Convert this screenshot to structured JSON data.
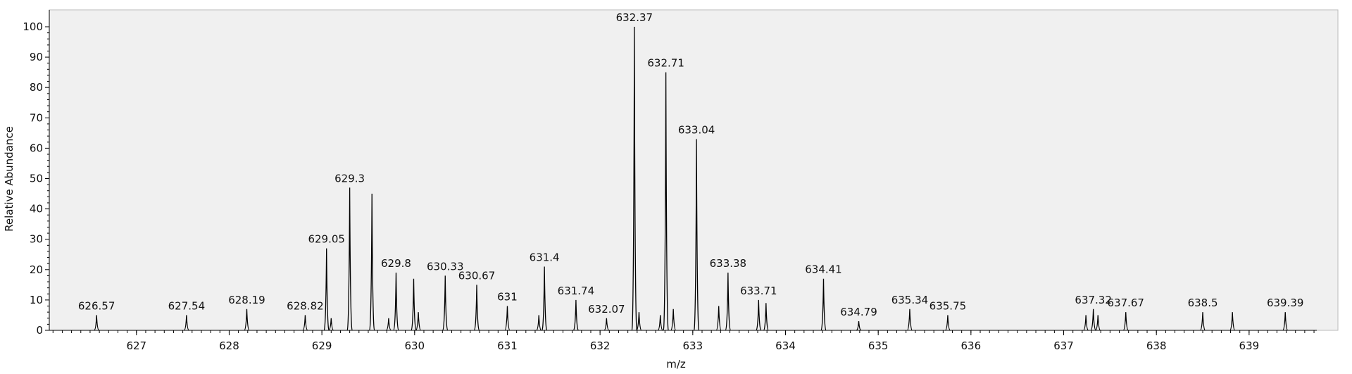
{
  "chart_data": {
    "type": "spectrum",
    "x_label": "m/z",
    "y_label": "Relative Abundance",
    "xlim": [
      626.06,
      639.73
    ],
    "ylim": [
      0,
      100
    ],
    "xticks": [
      627,
      628,
      629,
      630,
      631,
      632,
      633,
      634,
      635,
      636,
      637,
      638,
      639
    ],
    "yticks": [
      0,
      10,
      20,
      30,
      40,
      50,
      60,
      70,
      80,
      90,
      100
    ],
    "color": "#000000",
    "peaks": {
      "x": [
        626.57,
        627.54,
        628.19,
        628.82,
        629.05,
        629.3,
        629.8,
        630.33,
        630.67,
        631.0,
        631.4,
        631.74,
        632.07,
        632.37,
        632.71,
        633.04,
        633.38,
        633.71,
        634.41,
        634.79,
        635.34,
        635.75,
        637.32,
        637.67,
        638.5,
        639.39
      ],
      "values": [
        5,
        5,
        7,
        5,
        27,
        47,
        19,
        18,
        15,
        8,
        21,
        10,
        4,
        100,
        85,
        63,
        19,
        10,
        17,
        3,
        7,
        5,
        7,
        6,
        6,
        6
      ]
    },
    "unlabeled_peaks": {
      "x": [
        629.1,
        629.54,
        629.72,
        629.99,
        630.04,
        631.34,
        632.42,
        632.65,
        632.79,
        633.28,
        633.79,
        637.24,
        637.37,
        638.82
      ],
      "values": [
        4,
        45,
        4,
        17,
        6,
        5,
        6,
        5,
        7,
        8,
        9,
        5,
        5,
        6
      ]
    }
  }
}
